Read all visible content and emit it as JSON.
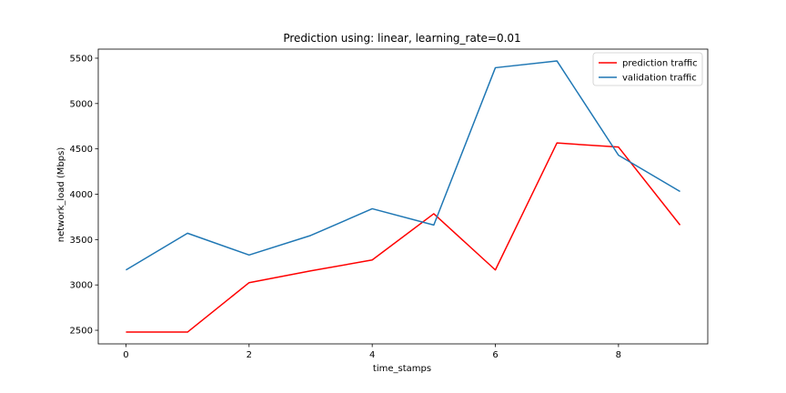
{
  "chart_data": {
    "type": "line",
    "title": "Prediction using: linear, learning_rate=0.01",
    "xlabel": "time_stamps",
    "ylabel": "network_load (Mbps)",
    "x": [
      0,
      1,
      2,
      3,
      4,
      5,
      6,
      7,
      8,
      9
    ],
    "xlim": [
      -0.45,
      9.45
    ],
    "ylim": [
      2350,
      5600
    ],
    "xticks": [
      0,
      2,
      4,
      6,
      8
    ],
    "yticks": [
      2500,
      3000,
      3500,
      4000,
      4500,
      5000,
      5500
    ],
    "grid": false,
    "legend_position": "top-right",
    "series": [
      {
        "name": "prediction traffic",
        "color": "#ff0000",
        "values": [
          2480,
          2480,
          3025,
          3155,
          3275,
          3785,
          3165,
          4565,
          4520,
          3660
        ]
      },
      {
        "name": "validation traffic",
        "color": "#1f77b4",
        "values": [
          3165,
          3570,
          3330,
          3545,
          3840,
          3660,
          5395,
          5470,
          4430,
          4030
        ]
      }
    ]
  }
}
